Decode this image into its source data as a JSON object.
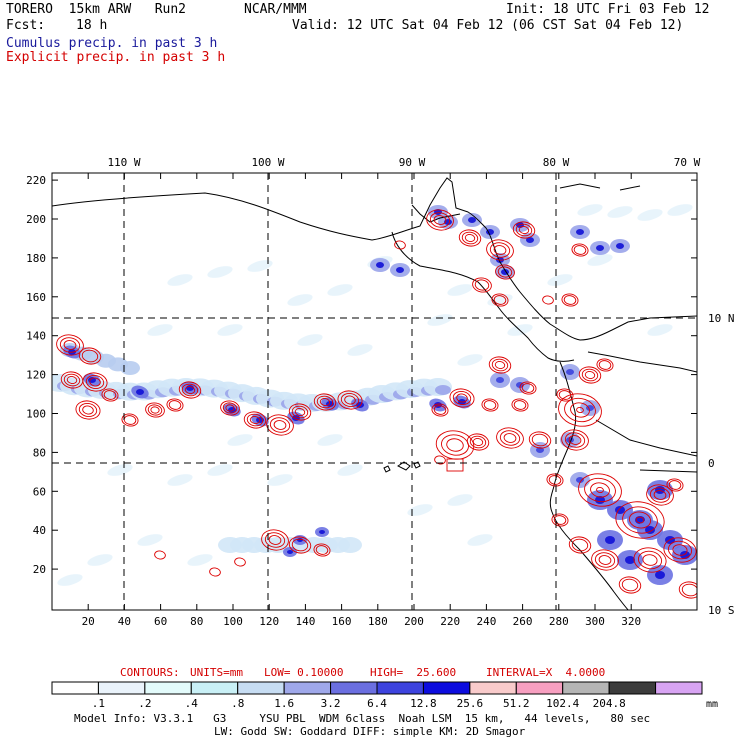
{
  "header": {
    "model": "TORERO  15km ARW   Run2",
    "org": "NCAR/MMM",
    "init": "Init: 18 UTC Fri 03 Feb 12",
    "fcst_label": "Fcst:",
    "fcst_value": "18 h",
    "valid": "Valid: 12 UTC Sat 04 Feb 12 (06 CST Sat 04 Feb 12)",
    "field1": "Cumulus precip. in past 3 h",
    "field2": "Explicit precip. in past 3 h"
  },
  "map": {
    "top_lon_labels": [
      "110 W",
      "100 W",
      "90 W",
      "80 W",
      "70 W"
    ],
    "right_lat_labels": [
      "10 N",
      "0",
      "10 S"
    ],
    "x_ticks": [
      "20",
      "40",
      "60",
      "80",
      "100",
      "120",
      "140",
      "160",
      "180",
      "200",
      "220",
      "240",
      "260",
      "280",
      "300",
      "320"
    ],
    "y_ticks": [
      "20",
      "40",
      "60",
      "80",
      "100",
      "120",
      "140",
      "160",
      "180",
      "200",
      "220"
    ],
    "colors": {
      "cumulus": "#3333cc",
      "explicit": "#dd0000",
      "coast": "#000000"
    }
  },
  "contours": {
    "label": "CONTOURS:",
    "units": "UNITS=mm",
    "low": "LOW= 0.10000",
    "high": "HIGH=  25.600",
    "interval": "INTERVAL=X  4.0000"
  },
  "legend": {
    "labels": [
      ".1",
      ".2",
      ".4",
      ".8",
      "1.6",
      "3.2",
      "6.4",
      "12.8",
      "25.6",
      "51.2",
      "102.4",
      "204.8"
    ],
    "unit": "mm",
    "colors": [
      "#ffffff",
      "#eaf3fb",
      "#e3fbfb",
      "#c9f0f6",
      "#c7ddf3",
      "#9fa8ea",
      "#6b6fe0",
      "#3d43de",
      "#0c0cde",
      "#f9cbcb",
      "#f79fc0",
      "#b5b5b5",
      "#3c3c3c",
      "#d8a4f3"
    ]
  },
  "footer": {
    "line1": "Model Info: V3.3.1   G3     YSU PBL  WDM 6class  Noah LSM  15 km,   44 levels,   80 sec",
    "line2": "LW: Godd SW: Goddard DIFF: simple KM: 2D Smagor"
  }
}
